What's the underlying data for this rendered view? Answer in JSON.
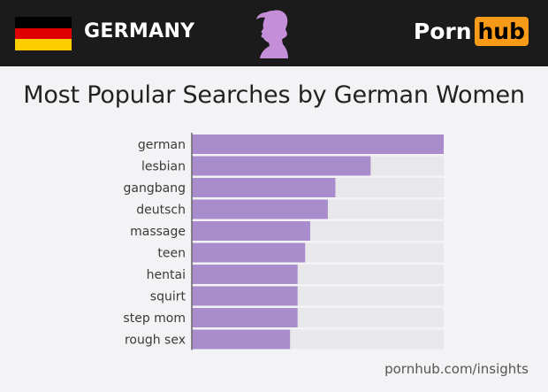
{
  "header": {
    "country": "GERMANY",
    "logo_left": "Porn",
    "logo_right": "hub",
    "flag_colors": [
      "#000000",
      "#dd0000",
      "#ffce00"
    ],
    "silhouette_icon": "woman-silhouette-icon",
    "silhouette_color": "#c48fd8",
    "logo_accent": "#f79a17"
  },
  "footer": {
    "source": "pornhub.com/insights"
  },
  "colors": {
    "bar": "#a98ccb",
    "track": "#e8e8ea",
    "axis": "#666666"
  },
  "chart_data": {
    "type": "bar",
    "orientation": "horizontal",
    "title": "Most Popular Searches by German Women",
    "categories": [
      "german",
      "lesbian",
      "gangbang",
      "deutsch",
      "massage",
      "teen",
      "hentai",
      "squirt",
      "step mom",
      "rough sex"
    ],
    "values": [
      100,
      71,
      57,
      54,
      47,
      45,
      42,
      42,
      42,
      39
    ],
    "xlim": [
      0,
      100
    ],
    "grid": false,
    "legend": "none"
  }
}
